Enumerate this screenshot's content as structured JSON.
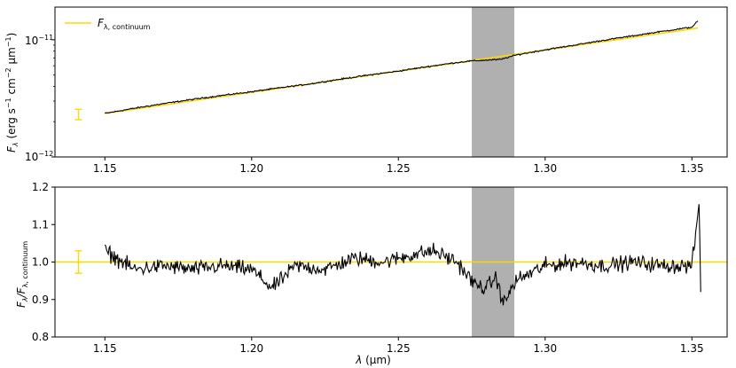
{
  "chart_data": [
    {
      "type": "line",
      "panel": "top",
      "yscale": "log",
      "xlim": [
        1.133,
        1.362
      ],
      "ylim": [
        1e-12,
        1.9e-11
      ],
      "ylabel": "F_λ (erg s⁻¹ cm⁻² μm⁻¹)",
      "ylabel_parts": {
        "symbol": "F",
        "symbol_sub": "λ",
        "units_open": " (erg s",
        "units_sup1": "−1",
        "units_mid1": " cm",
        "units_sup2": "−2",
        "units_mid2": " μm",
        "units_sup3": "−1",
        "units_close": ")"
      },
      "xticks": [
        1.15,
        1.2,
        1.25,
        1.3,
        1.35
      ],
      "xtick_labels": [
        "1.15",
        "1.20",
        "1.25",
        "1.30",
        "1.35"
      ],
      "ytick_labels": [
        {
          "base": "10",
          "exp": "−12",
          "value": 1e-12
        },
        {
          "base": "10",
          "exp": "−11",
          "value": 1e-11
        }
      ],
      "legend": {
        "placement": "top-left",
        "entries": [
          {
            "symbol": "F",
            "sub": "λ, continuum",
            "color": "#ffd700"
          }
        ]
      },
      "shaded_band": {
        "x0": 1.275,
        "x1": 1.2895,
        "color": "#b0b0b0"
      },
      "errorbar": {
        "x": 1.141,
        "y": 2.3e-12,
        "yerr_low": 2.2e-13,
        "yerr_high": 2.5e-13,
        "color": "#ffd700"
      },
      "series": [
        {
          "role": "continuum",
          "color": "#ffd700",
          "x": [
            1.15,
            1.352
          ],
          "y": [
            2.35e-12,
            1.26e-11
          ]
        },
        {
          "role": "spectrum",
          "color": "#000000",
          "x": [
            1.15,
            1.16,
            1.17,
            1.18,
            1.19,
            1.2,
            1.21,
            1.22,
            1.23,
            1.24,
            1.25,
            1.26,
            1.27,
            1.275,
            1.28,
            1.285,
            1.29,
            1.3,
            1.31,
            1.32,
            1.33,
            1.34,
            1.35,
            1.352
          ],
          "y": [
            2.35e-12,
            2.6e-12,
            2.85e-12,
            3.1e-12,
            3.35e-12,
            3.6e-12,
            3.9e-12,
            4.2e-12,
            4.6e-12,
            5e-12,
            5.4e-12,
            5.9e-12,
            6.4e-12,
            6.6e-12,
            6.7e-12,
            6.8e-12,
            7.4e-12,
            8.2e-12,
            9e-12,
            9.9e-12,
            1.08e-11,
            1.18e-11,
            1.28e-11,
            1.45e-11
          ],
          "noise_fraction": 0.02
        }
      ]
    },
    {
      "type": "line",
      "panel": "bottom",
      "xlim": [
        1.133,
        1.362
      ],
      "ylim": [
        0.8,
        1.2
      ],
      "xlabel": "λ (μm)",
      "xlabel_parts": {
        "symbol": "λ",
        "units": " (μm)"
      },
      "ylabel": "F_λ/F_λ, continuum",
      "ylabel_parts": {
        "symbol": "F",
        "sub1": "λ",
        "slash": "/F",
        "sub2": "λ, continuum"
      },
      "xticks": [
        1.15,
        1.2,
        1.25,
        1.3,
        1.35
      ],
      "xtick_labels": [
        "1.15",
        "1.20",
        "1.25",
        "1.30",
        "1.35"
      ],
      "yticks": [
        0.8,
        0.9,
        1.0,
        1.1,
        1.2
      ],
      "ytick_labels": [
        "0.8",
        "0.9",
        "1.0",
        "1.1",
        "1.2"
      ],
      "shaded_band": {
        "x0": 1.275,
        "x1": 1.2895,
        "color": "#b0b0b0"
      },
      "hline": {
        "y": 1.0,
        "color": "#ffd700"
      },
      "errorbar": {
        "x": 1.141,
        "y": 1.0,
        "yerr": 0.03,
        "color": "#ffd700"
      },
      "series": [
        {
          "role": "ratio",
          "color": "#000000",
          "x": [
            1.15,
            1.16,
            1.17,
            1.18,
            1.19,
            1.2,
            1.207,
            1.215,
            1.225,
            1.235,
            1.245,
            1.255,
            1.262,
            1.27,
            1.276,
            1.28,
            1.283,
            1.286,
            1.29,
            1.3,
            1.31,
            1.32,
            1.33,
            1.34,
            1.35,
            1.3525,
            1.353
          ],
          "y": [
            1.03,
            0.98,
            0.99,
            0.98,
            0.99,
            0.98,
            0.93,
            0.99,
            0.98,
            1.01,
            1.0,
            1.02,
            1.03,
            1.0,
            0.94,
            0.93,
            0.96,
            0.89,
            0.95,
            0.99,
            1.0,
            0.99,
            1.0,
            0.99,
            0.99,
            1.16,
            0.92
          ],
          "noise_amplitude": 0.03
        }
      ]
    }
  ]
}
